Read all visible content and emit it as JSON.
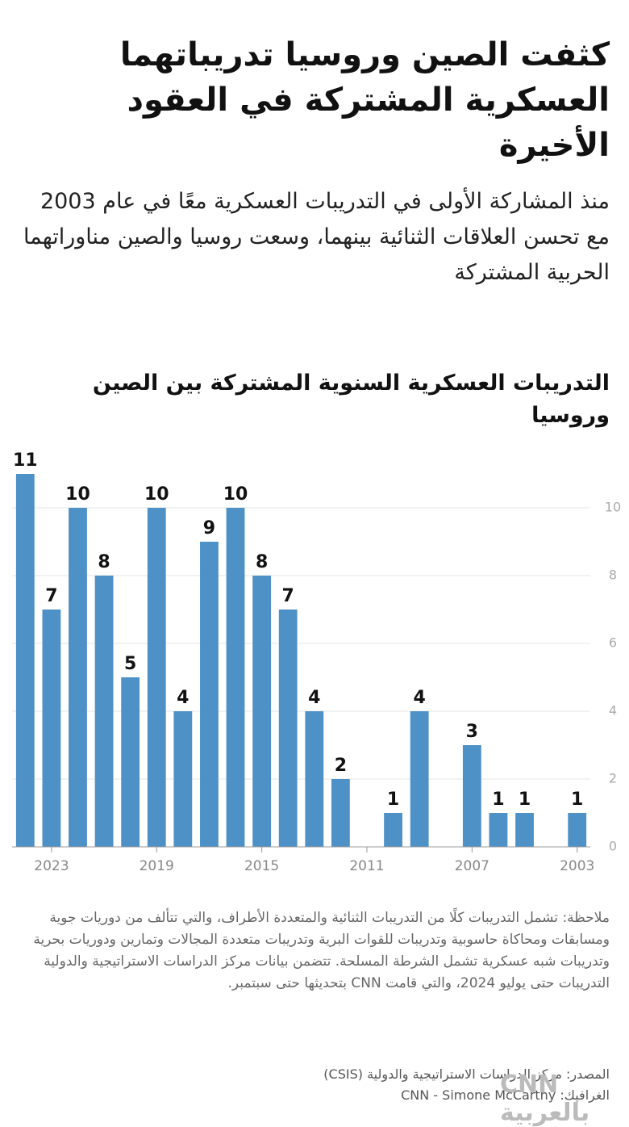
{
  "chart_data": {
    "type": "bar",
    "title": "كثفت الصين وروسيا تدريباتهما العسكرية المشتركة في العقود الأخيرة",
    "subtitle": "منذ المشاركة الأولى في التدريبات العسكرية معًا في عام 2003 مع تحسن العلاقات الثنائية بينهما، وسعت روسيا والصين مناوراتهما الحربية المشتركة",
    "chart_title": "التدريبات العسكرية السنوية المشتركة بين الصين وروسيا",
    "x": [
      2024,
      2023,
      2022,
      2021,
      2020,
      2019,
      2018,
      2017,
      2016,
      2015,
      2014,
      2013,
      2012,
      2010,
      2009,
      2007,
      2006,
      2005,
      2003
    ],
    "values": [
      11,
      7,
      10,
      8,
      5,
      10,
      4,
      9,
      10,
      8,
      7,
      4,
      2,
      1,
      4,
      3,
      1,
      1,
      1
    ],
    "color": "#4e91c6",
    "xlim": [
      2024.5,
      2002.5
    ],
    "xticks": [
      2023,
      2019,
      2015,
      2011,
      2007,
      2003
    ],
    "ylim": [
      0,
      11
    ],
    "yticks": [
      0,
      2,
      4,
      6,
      8,
      10
    ],
    "grid": true,
    "note": "ملاحظة: تشمل التدريبات كلًا من التدريبات الثنائية والمتعددة الأطراف، والتي تتألف من دوريات جوية ومسابقات ومحاكاة حاسوبية وتدريبات للقوات البرية وتدريبات متعددة المجالات وتمارين ودوريات بحرية وتدريبات شبه عسكرية تشمل الشرطة المسلحة. تتضمن بيانات مركز الدراسات الاستراتيجية والدولية التدريبات حتى يوليو 2024، والتي قامت CNN بتحديثها حتى سبتمبر.",
    "source": "المصدر: مركز الدراسات الاستراتيجية والدولية (CSIS)",
    "credit": "الغرافيك: CNN - Simone McCarthy",
    "logo": "CNN بالعربية"
  }
}
